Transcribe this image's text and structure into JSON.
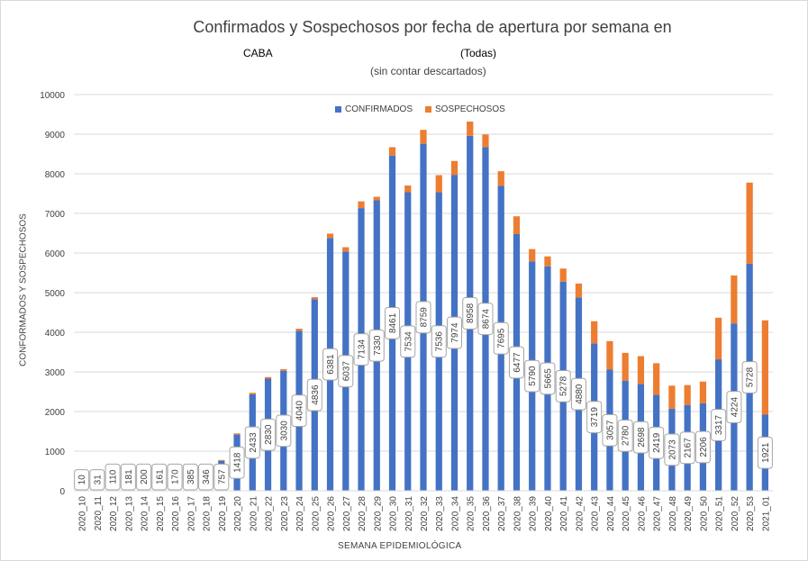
{
  "chart_data": {
    "type": "bar",
    "stacked": true,
    "title": "Confirmados y Sospechosos por fecha de apertura por semana en",
    "title_place": "CABA",
    "title_filter": "(Todas)",
    "subtitle": "(sin contar descartados)",
    "xlabel": "SEMANA  EPIDEMIOLÓGICA",
    "ylabel": "CONFORMADOS  Y SOSPECHOSOS",
    "ylim": [
      0,
      10000
    ],
    "yticks": [
      0,
      1000,
      2000,
      3000,
      4000,
      5000,
      6000,
      7000,
      8000,
      9000,
      10000
    ],
    "grid": true,
    "legend_position": "top",
    "categories": [
      "2020_10",
      "2020_11",
      "2020_12",
      "2020_13",
      "2020_14",
      "2020_15",
      "2020_16",
      "2020_17",
      "2020_18",
      "2020_19",
      "2020_20",
      "2020_21",
      "2020_22",
      "2020_23",
      "2020_24",
      "2020_25",
      "2020_26",
      "2020_27",
      "2020_28",
      "2020_29",
      "2020_30",
      "2020_31",
      "2020_32",
      "2020_33",
      "2020_34",
      "2020_35",
      "2020_36",
      "2020_37",
      "2020_38",
      "2020_39",
      "2020_40",
      "2020_41",
      "2020_42",
      "2020_43",
      "2020_44",
      "2020_45",
      "2020_46",
      "2020_47",
      "2020_48",
      "2020_49",
      "2020_50",
      "2020_51",
      "2020_52",
      "2020_53",
      "2021_01"
    ],
    "series": [
      {
        "name": "CONFIRMADOS",
        "color": "#4472c4",
        "values": [
          10,
          31,
          110,
          181,
          200,
          161,
          170,
          385,
          346,
          757,
          1418,
          2433,
          2830,
          3030,
          4040,
          4836,
          6381,
          6037,
          7134,
          7330,
          8461,
          7534,
          8759,
          7536,
          7974,
          8958,
          8674,
          7695,
          6477,
          5790,
          5665,
          5278,
          4880,
          3719,
          3057,
          2780,
          2698,
          2419,
          2073,
          2167,
          2206,
          3317,
          4224,
          5728,
          1921
        ],
        "data_labels": [
          "10",
          "31",
          "110",
          "181",
          "200",
          "161",
          "170",
          "385",
          "346",
          "757",
          "1418",
          "2433",
          "2830",
          "3030",
          "4040",
          "4836",
          "6381",
          "6037",
          "7134",
          "7330",
          "8461",
          "7534",
          "8759",
          "7536",
          "7974",
          "8958",
          "8674",
          "7695",
          "6477",
          "5790",
          "5665",
          "5278",
          "4880",
          "3719",
          "3057",
          "2780",
          "2698",
          "2419",
          "2073",
          "2167",
          "2206",
          "3317",
          "4224",
          "5728",
          "1921"
        ]
      },
      {
        "name": "SOSPECHOSOS",
        "color": "#ed7d31",
        "values": [
          0,
          0,
          0,
          0,
          0,
          0,
          0,
          0,
          0,
          20,
          30,
          40,
          40,
          40,
          50,
          50,
          110,
          110,
          170,
          90,
          210,
          170,
          350,
          430,
          350,
          360,
          320,
          370,
          450,
          310,
          250,
          330,
          350,
          560,
          720,
          700,
          700,
          800,
          580,
          500,
          550,
          1050,
          1210,
          2050,
          2380
        ]
      }
    ]
  }
}
